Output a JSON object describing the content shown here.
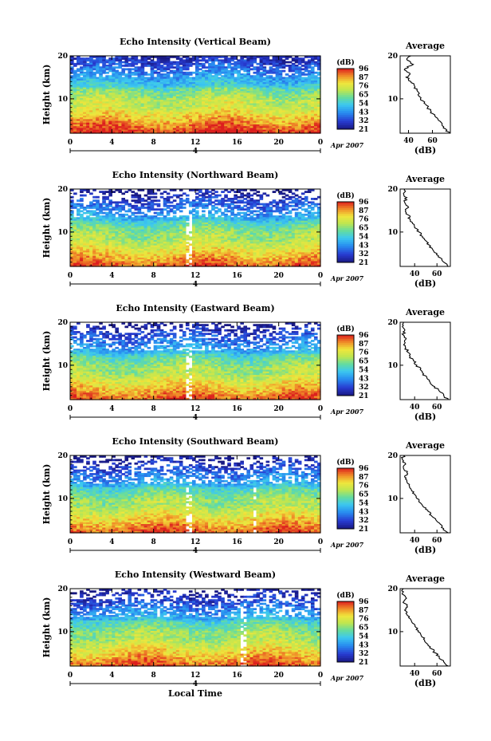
{
  "figure": {
    "time_axis_label": "Local Time",
    "height_axis_label": "Height (km)",
    "average_xlabel": "(dB)",
    "colorbar_label": "(dB)",
    "date_label": "Apr 2007",
    "date_day": "4"
  },
  "chart_data": [
    {
      "type": "heatmap",
      "title": "Echo Intensity (Vertical Beam)",
      "xlabel": "",
      "ylabel": "Height (km)",
      "x_ticks": [
        "0",
        "4",
        "8",
        "12",
        "16",
        "20",
        "0"
      ],
      "y_ticks": [
        "10",
        "20"
      ],
      "xlim": [
        0,
        24
      ],
      "ylim": [
        2,
        20
      ],
      "colorbar": {
        "label": "(dB)",
        "ticks": [
          "96",
          "87",
          "76",
          "65",
          "54",
          "43",
          "32",
          "21"
        ]
      },
      "date": {
        "day": "4",
        "label": "Apr 2007"
      },
      "profile": {
        "title": "Average",
        "xlabel": "(dB)",
        "x_ticks": [
          "40",
          "60"
        ],
        "xlim": [
          33,
          75
        ],
        "heights": [
          2,
          3,
          4,
          5,
          6,
          7,
          8,
          9,
          10,
          11,
          12,
          13,
          14,
          15,
          16,
          17,
          18,
          19,
          20
        ],
        "values": [
          74,
          71,
          68,
          65,
          62,
          59,
          56,
          53,
          50,
          48,
          47,
          45,
          42,
          38,
          41,
          37,
          44,
          39,
          42
        ]
      }
    },
    {
      "type": "heatmap",
      "title": "Echo Intensity (Northward Beam)",
      "xlabel": "",
      "ylabel": "Height (km)",
      "x_ticks": [
        "0",
        "4",
        "8",
        "12",
        "16",
        "20",
        "0"
      ],
      "y_ticks": [
        "10",
        "20"
      ],
      "xlim": [
        0,
        24
      ],
      "ylim": [
        2,
        20
      ],
      "colorbar": {
        "label": "(dB)",
        "ticks": [
          "96",
          "87",
          "76",
          "65",
          "54",
          "43",
          "32",
          "21"
        ]
      },
      "date": {
        "day": "4",
        "label": "Apr 2007"
      },
      "profile": {
        "title": "Average",
        "xlabel": "(dB)",
        "x_ticks": [
          "40",
          "60"
        ],
        "xlim": [
          27,
          72
        ],
        "heights": [
          2,
          3,
          4,
          5,
          6,
          7,
          8,
          9,
          10,
          11,
          12,
          13,
          14,
          15,
          16,
          17,
          18,
          19,
          20
        ],
        "values": [
          70,
          66,
          63,
          60,
          56,
          53,
          50,
          47,
          44,
          40,
          38,
          36,
          34,
          32,
          34,
          31,
          33,
          30,
          31
        ]
      }
    },
    {
      "type": "heatmap",
      "title": "Echo Intensity (Eastward Beam)",
      "xlabel": "",
      "ylabel": "Height (km)",
      "x_ticks": [
        "0",
        "4",
        "8",
        "12",
        "16",
        "20",
        "0"
      ],
      "y_ticks": [
        "10",
        "20"
      ],
      "xlim": [
        0,
        24
      ],
      "ylim": [
        2,
        20
      ],
      "colorbar": {
        "label": "(dB)",
        "ticks": [
          "96",
          "87",
          "76",
          "65",
          "54",
          "43",
          "32",
          "21"
        ]
      },
      "date": {
        "day": "4",
        "label": "Apr 2007"
      },
      "profile": {
        "title": "Average",
        "xlabel": "(dB)",
        "x_ticks": [
          "40",
          "60"
        ],
        "xlim": [
          27,
          72
        ],
        "heights": [
          2,
          3,
          4,
          5,
          6,
          7,
          8,
          9,
          10,
          11,
          12,
          13,
          14,
          15,
          16,
          17,
          18,
          19,
          20
        ],
        "values": [
          70,
          66,
          62,
          58,
          54,
          51,
          48,
          45,
          42,
          39,
          36,
          34,
          32,
          31,
          32,
          30,
          31,
          29,
          30
        ]
      }
    },
    {
      "type": "heatmap",
      "title": "Echo Intensity (Southward Beam)",
      "xlabel": "",
      "ylabel": "Height (km)",
      "x_ticks": [
        "0",
        "4",
        "8",
        "12",
        "16",
        "20",
        "0"
      ],
      "y_ticks": [
        "10",
        "20"
      ],
      "xlim": [
        0,
        24
      ],
      "ylim": [
        2,
        20
      ],
      "colorbar": {
        "label": "(dB)",
        "ticks": [
          "96",
          "87",
          "76",
          "65",
          "54",
          "43",
          "32",
          "21"
        ]
      },
      "date": {
        "day": "4",
        "label": "Apr 2007"
      },
      "profile": {
        "title": "Average",
        "xlabel": "(dB)",
        "x_ticks": [
          "40",
          "60"
        ],
        "xlim": [
          27,
          72
        ],
        "heights": [
          2,
          3,
          4,
          5,
          6,
          7,
          8,
          9,
          10,
          11,
          12,
          13,
          14,
          15,
          16,
          17,
          18,
          19,
          20
        ],
        "values": [
          70,
          66,
          63,
          59,
          55,
          52,
          48,
          45,
          42,
          40,
          37,
          35,
          33,
          31,
          33,
          30,
          32,
          29,
          30
        ]
      }
    },
    {
      "type": "heatmap",
      "title": "Echo Intensity (Westward Beam)",
      "xlabel": "Local Time",
      "ylabel": "Height (km)",
      "x_ticks": [
        "0",
        "4",
        "8",
        "12",
        "16",
        "20",
        "0"
      ],
      "y_ticks": [
        "10",
        "20"
      ],
      "xlim": [
        0,
        24
      ],
      "ylim": [
        2,
        20
      ],
      "colorbar": {
        "label": "(dB)",
        "ticks": [
          "96",
          "87",
          "76",
          "65",
          "54",
          "43",
          "32",
          "21"
        ]
      },
      "date": {
        "day": "4",
        "label": "Apr 2007"
      },
      "profile": {
        "title": "Average",
        "xlabel": "(dB)",
        "x_ticks": [
          "40",
          "60"
        ],
        "xlim": [
          27,
          72
        ],
        "heights": [
          2,
          3,
          4,
          5,
          6,
          7,
          8,
          9,
          10,
          11,
          12,
          13,
          14,
          15,
          16,
          17,
          18,
          19,
          20
        ],
        "values": [
          70,
          66,
          62,
          59,
          55,
          52,
          49,
          46,
          43,
          41,
          38,
          36,
          33,
          31,
          33,
          30,
          32,
          29,
          30
        ]
      }
    }
  ]
}
